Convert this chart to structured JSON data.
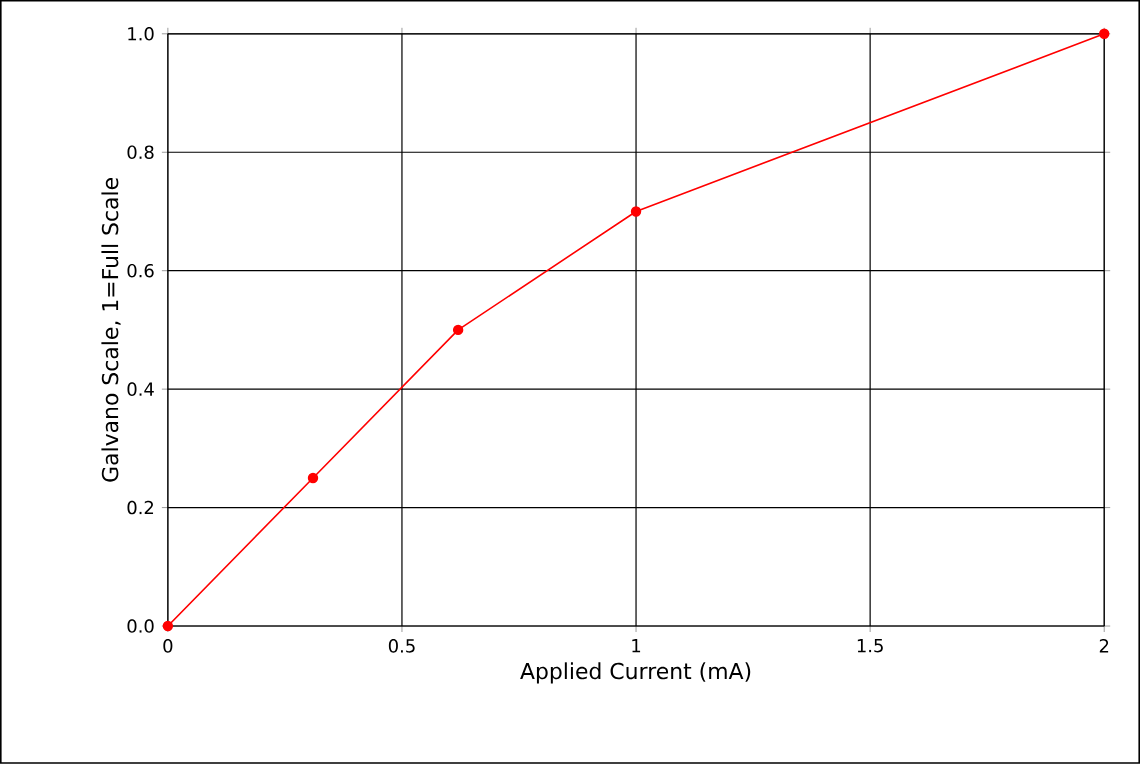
{
  "chart_data": {
    "type": "line",
    "xlabel": "Applied Current (mA)",
    "ylabel": "Galvano Scale, 1=Full Scale",
    "x": [
      0,
      0.31,
      0.62,
      1,
      2
    ],
    "series": [
      {
        "color": "#ff0000",
        "values": [
          0,
          0.25,
          0.5,
          0.7,
          1.0
        ]
      }
    ],
    "xlim": [
      0,
      2
    ],
    "xticks": [
      0,
      0.5,
      1,
      1.5,
      2
    ],
    "ylim": [
      0,
      1.0
    ],
    "yticks": [
      {
        "value": 0,
        "label": "0.0"
      },
      {
        "value": 0.2,
        "label": "0.2"
      },
      {
        "value": 0.4,
        "label": "0.4"
      },
      {
        "value": 0.6,
        "label": "0.6"
      },
      {
        "value": 0.8,
        "label": "0.8"
      },
      {
        "value": 1.0,
        "label": "1.0"
      }
    ],
    "grid": true,
    "marker": "circle",
    "line_style": "solid"
  }
}
